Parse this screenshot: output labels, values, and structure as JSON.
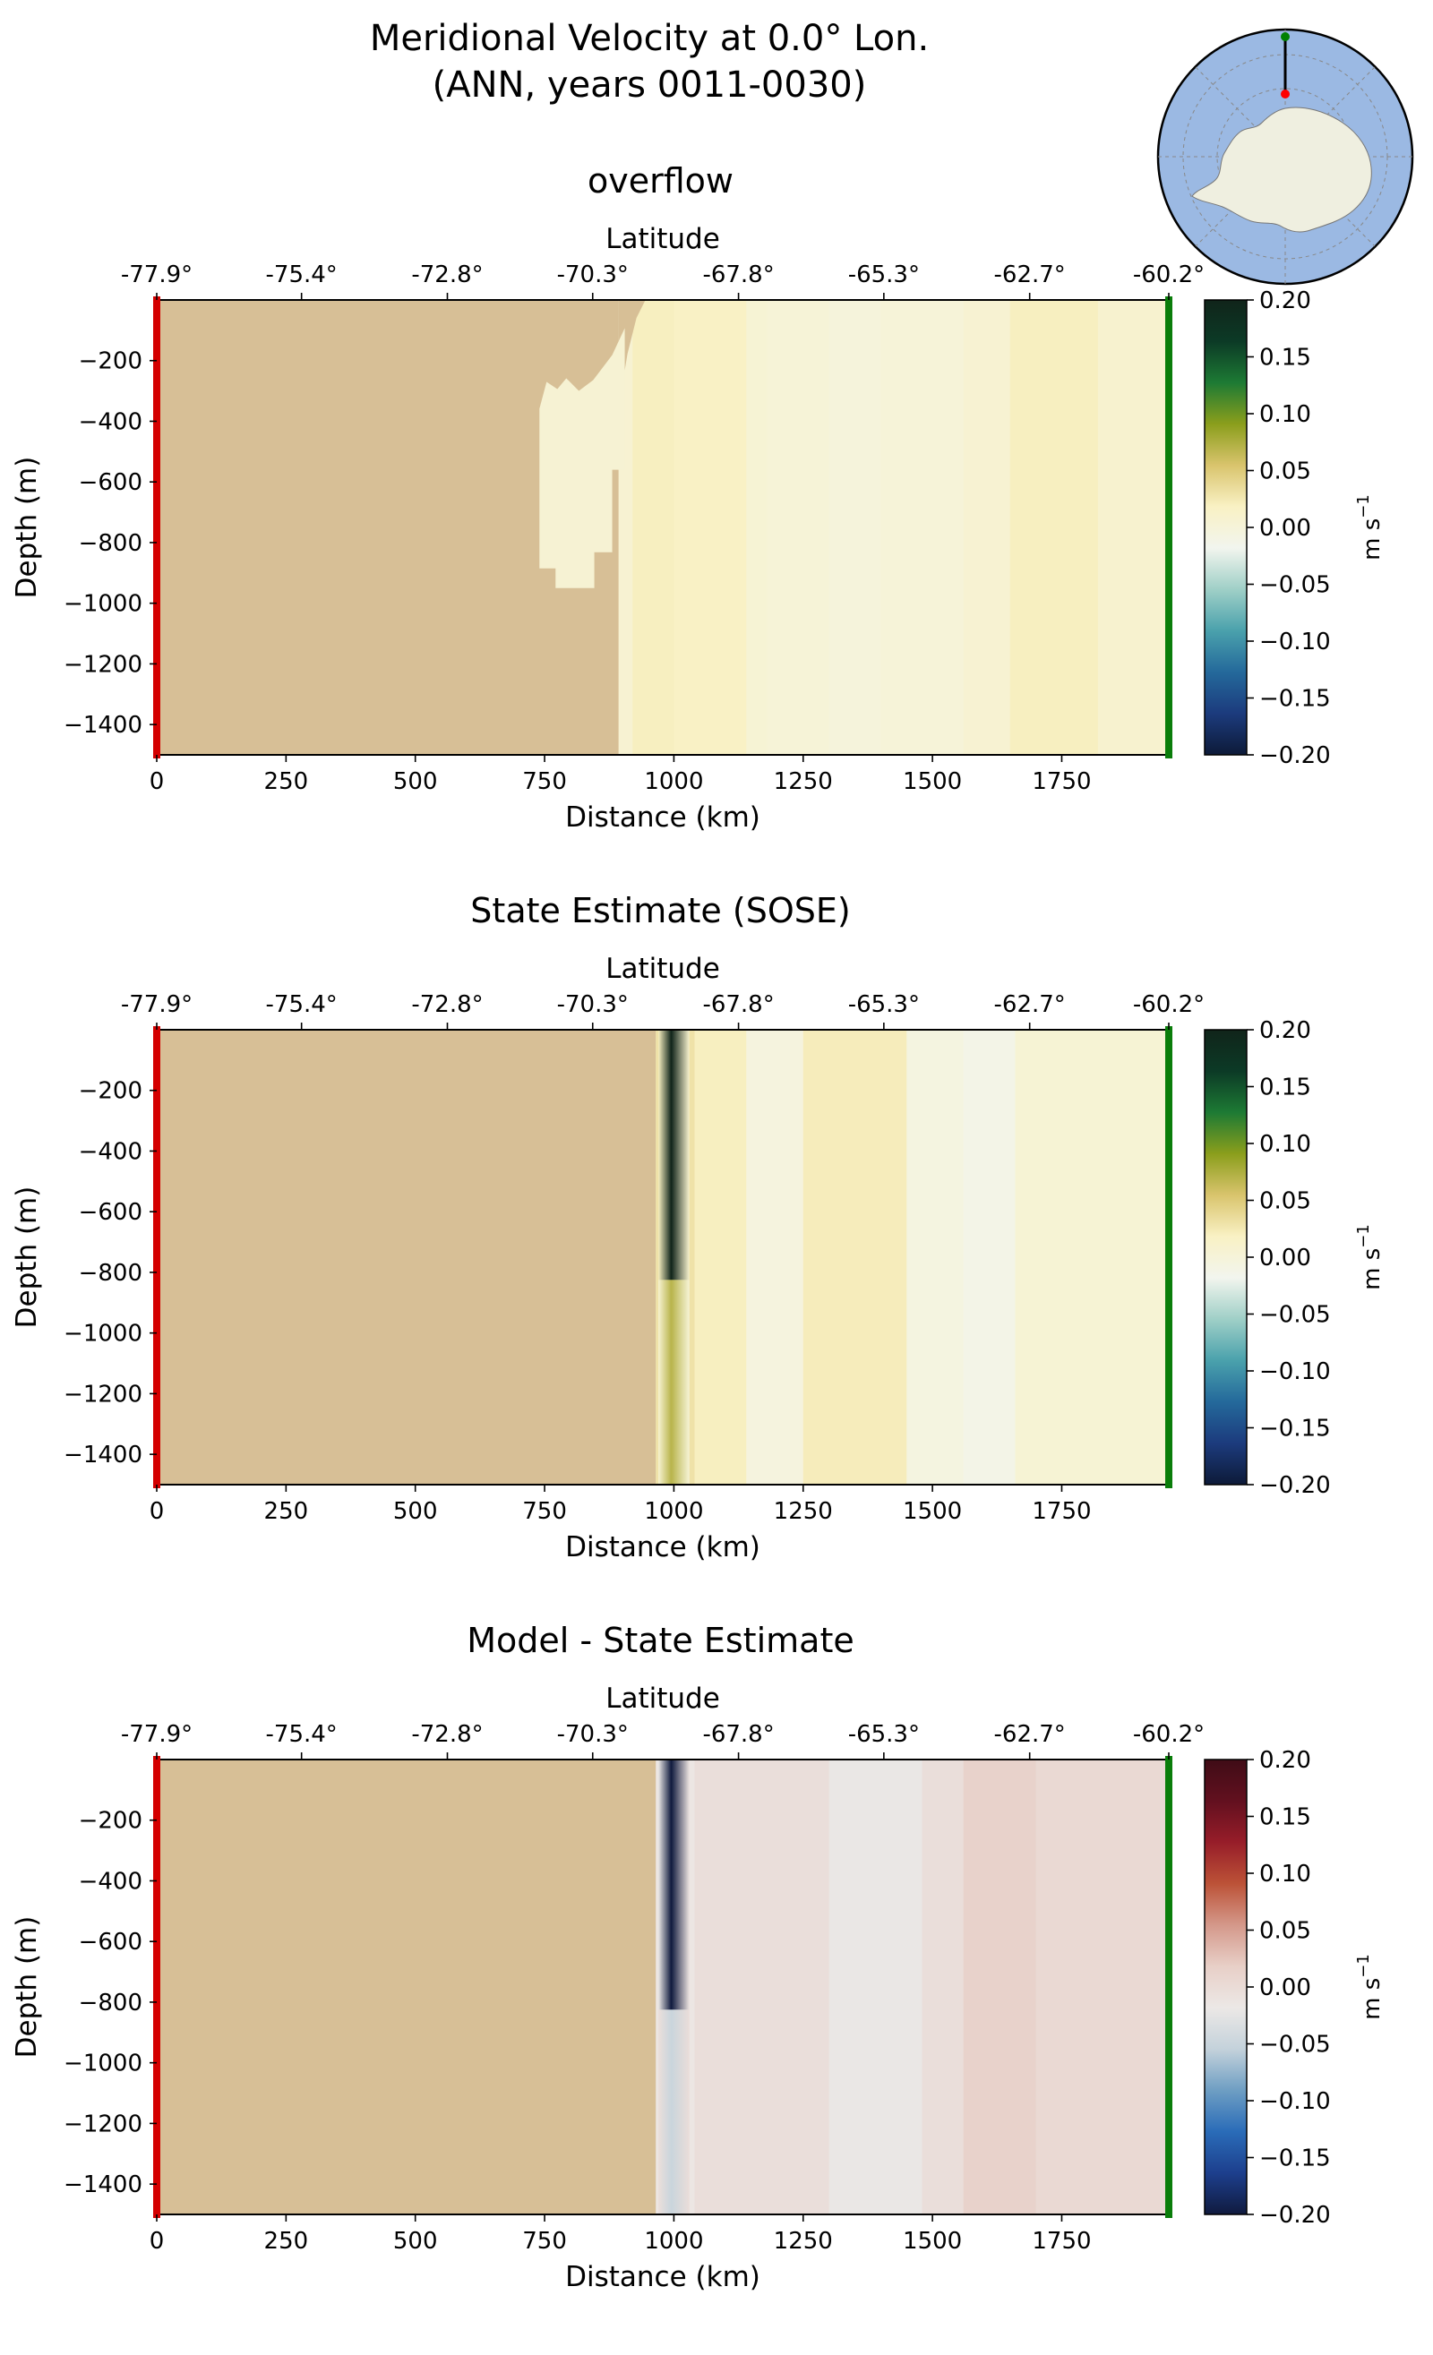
{
  "figure": {
    "title_line1": "Meridional Velocity at 0.0° Lon.",
    "title_line2": "(ANN, years 0011-0030)"
  },
  "map_inset": {
    "ocean_color": "#9bb9e3",
    "land_color": "#efefe0",
    "transect_color": "#000000",
    "start_marker_color": "#ff0000",
    "end_marker_color": "#008000"
  },
  "colors": {
    "land_mask": "#d7bf96",
    "left_marker": "#d40000",
    "right_marker": "#0a7d0a"
  },
  "chart_data": [
    {
      "type": "heatmap",
      "title": "overflow",
      "xlabel": "Distance (km)",
      "ylabel": "Depth (m)",
      "top_axis_label": "Latitude",
      "xlim": [
        0,
        1957
      ],
      "ylim": [
        -1500,
        0
      ],
      "xticks": [
        "0",
        "250",
        "500",
        "750",
        "1000",
        "1250",
        "1500",
        "1750"
      ],
      "xtick_values": [
        0,
        250,
        500,
        750,
        1000,
        1250,
        1500,
        1750
      ],
      "yticks": [
        "−200",
        "−400",
        "−600",
        "−800",
        "−1000",
        "−1200",
        "−1400"
      ],
      "ytick_values": [
        -200,
        -400,
        -600,
        -800,
        -1000,
        -1200,
        -1400
      ],
      "lat_ticks": [
        "-77.9°",
        "-75.4°",
        "-72.8°",
        "-70.3°",
        "-67.8°",
        "-65.3°",
        "-62.7°",
        "-60.2°"
      ],
      "lat_tick_distances": [
        0,
        280,
        562,
        843,
        1125,
        1406,
        1688,
        1957
      ],
      "colorbar": {
        "label": "m s",
        "label_exponent": "−1",
        "range": [
          -0.2,
          0.2
        ],
        "ticks": [
          "0.20",
          "0.15",
          "0.10",
          "0.05",
          "0.00",
          "−0.05",
          "−0.10",
          "−0.15",
          "−0.20"
        ],
        "tick_values": [
          0.2,
          0.15,
          0.1,
          0.05,
          0.0,
          -0.05,
          -0.1,
          -0.15,
          -0.2
        ],
        "colormap": [
          "#0d1a38",
          "#1c3b7d",
          "#24699b",
          "#4aa1ac",
          "#9fcfc7",
          "#f2f5ee",
          "#f9f1c4",
          "#d9c46d",
          "#8b9e1c",
          "#1d7a34",
          "#0c3a26",
          "#10241a"
        ]
      },
      "land_mask_km": 893,
      "ice_shelf_cavity": {
        "x_km": [
          740,
          905
        ],
        "depth_m": [
          -270,
          -950
        ],
        "value": 0.005
      },
      "columns": [
        {
          "x": [
            893,
            920
          ],
          "v": 0.006
        },
        {
          "x": [
            920,
            1000
          ],
          "v": 0.02
        },
        {
          "x": [
            1000,
            1140
          ],
          "v": 0.017
        },
        {
          "x": [
            1140,
            1180
          ],
          "v": 0.004
        },
        {
          "x": [
            1180,
            1300
          ],
          "v": 0.002
        },
        {
          "x": [
            1300,
            1400
          ],
          "v": -0.002
        },
        {
          "x": [
            1400,
            1560
          ],
          "v": 0.001
        },
        {
          "x": [
            1560,
            1650
          ],
          "v": 0.006
        },
        {
          "x": [
            1650,
            1820
          ],
          "v": 0.02
        },
        {
          "x": [
            1820,
            1957
          ],
          "v": 0.009
        }
      ]
    },
    {
      "type": "heatmap",
      "title": "State Estimate (SOSE)",
      "xlabel": "Distance (km)",
      "ylabel": "Depth (m)",
      "top_axis_label": "Latitude",
      "xlim": [
        0,
        1957
      ],
      "ylim": [
        -1500,
        0
      ],
      "xticks": [
        "0",
        "250",
        "500",
        "750",
        "1000",
        "1250",
        "1500",
        "1750"
      ],
      "xtick_values": [
        0,
        250,
        500,
        750,
        1000,
        1250,
        1500,
        1750
      ],
      "yticks": [
        "−200",
        "−400",
        "−600",
        "−800",
        "−1000",
        "−1200",
        "−1400"
      ],
      "ytick_values": [
        -200,
        -400,
        -600,
        -800,
        -1000,
        -1200,
        -1400
      ],
      "lat_ticks": [
        "-77.9°",
        "-75.4°",
        "-72.8°",
        "-70.3°",
        "-67.8°",
        "-65.3°",
        "-62.7°",
        "-60.2°"
      ],
      "lat_tick_distances": [
        0,
        280,
        562,
        843,
        1125,
        1406,
        1688,
        1957
      ],
      "colorbar": {
        "label": "m s",
        "label_exponent": "−1",
        "range": [
          -0.2,
          0.2
        ],
        "ticks": [
          "0.20",
          "0.15",
          "0.10",
          "0.05",
          "0.00",
          "−0.05",
          "−0.10",
          "−0.15",
          "−0.20"
        ],
        "tick_values": [
          0.2,
          0.15,
          0.1,
          0.05,
          0.0,
          -0.05,
          -0.1,
          -0.15,
          -0.2
        ],
        "colormap": [
          "#0d1a38",
          "#1c3b7d",
          "#24699b",
          "#4aa1ac",
          "#9fcfc7",
          "#f2f5ee",
          "#f9f1c4",
          "#d9c46d",
          "#8b9e1c",
          "#1d7a34",
          "#0c3a26",
          "#10241a"
        ]
      },
      "land_mask_km": 965,
      "boundary_jet": {
        "x_km": [
          970,
          1030
        ],
        "core_km": 995,
        "value_top": 0.2,
        "value_bottom": 0.07
      },
      "columns": [
        {
          "x": [
            965,
            1040
          ],
          "v": 0.03
        },
        {
          "x": [
            1040,
            1140
          ],
          "v": 0.02
        },
        {
          "x": [
            1140,
            1250
          ],
          "v": -0.004
        },
        {
          "x": [
            1250,
            1450
          ],
          "v": 0.022
        },
        {
          "x": [
            1450,
            1560
          ],
          "v": -0.006
        },
        {
          "x": [
            1560,
            1660
          ],
          "v": -0.012
        },
        {
          "x": [
            1660,
            1957
          ],
          "v": 0.004
        }
      ]
    },
    {
      "type": "heatmap",
      "title": "Model - State Estimate",
      "xlabel": "Distance (km)",
      "ylabel": "Depth (m)",
      "top_axis_label": "Latitude",
      "xlim": [
        0,
        1957
      ],
      "ylim": [
        -1500,
        0
      ],
      "xticks": [
        "0",
        "250",
        "500",
        "750",
        "1000",
        "1250",
        "1500",
        "1750"
      ],
      "xtick_values": [
        0,
        250,
        500,
        750,
        1000,
        1250,
        1500,
        1750
      ],
      "yticks": [
        "−200",
        "−400",
        "−600",
        "−800",
        "−1000",
        "−1200",
        "−1400"
      ],
      "ytick_values": [
        -200,
        -400,
        -600,
        -800,
        -1000,
        -1200,
        -1400
      ],
      "lat_ticks": [
        "-77.9°",
        "-75.4°",
        "-72.8°",
        "-70.3°",
        "-67.8°",
        "-65.3°",
        "-62.7°",
        "-60.2°"
      ],
      "lat_tick_distances": [
        0,
        280,
        562,
        843,
        1125,
        1406,
        1688,
        1957
      ],
      "colorbar": {
        "label": "m s",
        "label_exponent": "−1",
        "range": [
          -0.2,
          0.2
        ],
        "ticks": [
          "0.20",
          "0.15",
          "0.10",
          "0.05",
          "0.00",
          "−0.05",
          "−0.10",
          "−0.15",
          "−0.20"
        ],
        "tick_values": [
          0.2,
          0.15,
          0.1,
          0.05,
          0.0,
          -0.05,
          -0.1,
          -0.15,
          -0.2
        ],
        "colormap": [
          "#101a3e",
          "#1d3f8d",
          "#2a6cb8",
          "#6e9ec3",
          "#c4d2db",
          "#ece8e6",
          "#e8cfc7",
          "#d4988a",
          "#bc5237",
          "#971d29",
          "#62101f",
          "#3f0c16"
        ]
      },
      "land_mask_km": 965,
      "boundary_jet": {
        "x_km": [
          970,
          1030
        ],
        "core_km": 995,
        "value_top": -0.2,
        "value_bottom": -0.05
      },
      "columns": [
        {
          "x": [
            965,
            1040
          ],
          "v": -0.015
        },
        {
          "x": [
            1040,
            1300
          ],
          "v": -0.004
        },
        {
          "x": [
            1300,
            1480
          ],
          "v": -0.02
        },
        {
          "x": [
            1480,
            1560
          ],
          "v": -0.004
        },
        {
          "x": [
            1560,
            1700
          ],
          "v": 0.014
        },
        {
          "x": [
            1700,
            1957
          ],
          "v": 0.004
        }
      ]
    }
  ]
}
